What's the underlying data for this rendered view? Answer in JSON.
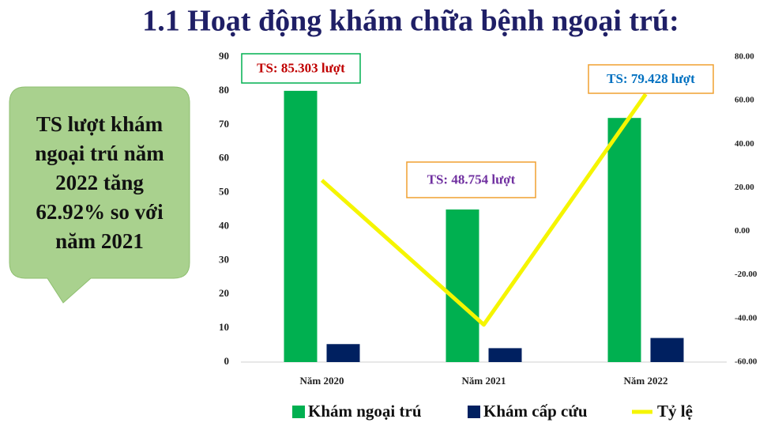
{
  "chart_data": {
    "type": "bar",
    "title": "1.1 Hoạt động khám chữa bệnh ngoại trú:",
    "title_color": "#1f1f66",
    "categories": [
      "Năm 2020",
      "Năm 2021",
      "Năm 2022"
    ],
    "series": [
      {
        "name": "Khám ngoại trú",
        "color": "#00b050",
        "values": [
          80,
          45,
          72
        ]
      },
      {
        "name": "Khám cấp cứu",
        "color": "#002060",
        "values": [
          5.3,
          4.1,
          7.1
        ]
      },
      {
        "name": "Tỷ lệ",
        "color": "#f5f500",
        "type": "line",
        "axis": "y2",
        "values": [
          23.4,
          -42.85,
          62.92
        ]
      }
    ],
    "ylim": [
      0,
      90
    ],
    "yticks": [
      0,
      10,
      20,
      30,
      40,
      50,
      60,
      70,
      80,
      90
    ],
    "y2lim": [
      -60,
      80
    ],
    "y2ticks": [
      {
        "value": -60,
        "label": "-60.00"
      },
      {
        "value": -40,
        "label": "-40.00"
      },
      {
        "value": -20,
        "label": "-20.00"
      },
      {
        "value": 0,
        "label": "0.00"
      },
      {
        "value": 20,
        "label": "20.00"
      },
      {
        "value": 40,
        "label": "40.00"
      },
      {
        "value": 60,
        "label": "60.00"
      },
      {
        "value": 80,
        "label": "80.00"
      }
    ],
    "grid": false,
    "legend": "bottom",
    "annotations": [
      {
        "text": "TS: 85.303 lượt",
        "color": "#c00000",
        "border": "#00b050"
      },
      {
        "text": "TS: 48.754 lượt",
        "color": "#7030a0",
        "border": "#f0a030"
      },
      {
        "text": "TS: 79.428 lượt",
        "color": "#0070c0",
        "border": "#f0a030"
      }
    ],
    "callout": {
      "lines": [
        "TS lượt khám",
        "ngoại trú năm",
        "2022 tăng",
        "62.92% so với",
        "năm 2021"
      ],
      "color": "#a9d18e"
    }
  }
}
